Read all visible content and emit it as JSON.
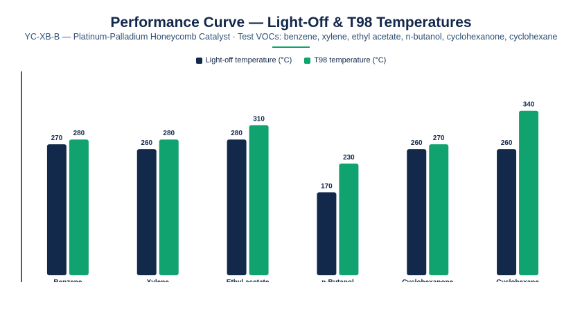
{
  "header": {
    "title": "Performance Curve — Light-Off & T98 Temperatures",
    "subtitle": "YC-XB-B — Platinum-Palladium Honeycomb Catalyst · Test VOCs: benzene, xylene, ethyl acetate, n-butanol, cyclohexanone, cyclohexane"
  },
  "colors": {
    "accent": "#10a36f",
    "navy": "#13294b"
  },
  "chart_data": {
    "type": "bar",
    "title": "Performance Curve — Light-Off & T98 Temperatures",
    "categories": [
      "Benzene",
      "Xylene",
      "Ethyl acetate",
      "n-Butanol",
      "Cyclohexanone",
      "Cyclohexane"
    ],
    "series": [
      {
        "name": "Light-off temperature (°C)",
        "color": "#13294b",
        "values": [
          270,
          260,
          280,
          170,
          260,
          260
        ]
      },
      {
        "name": "T98 temperature (°C)",
        "color": "#10a36f",
        "values": [
          280,
          280,
          310,
          230,
          270,
          340
        ]
      }
    ],
    "ylim": [
      0,
      380
    ],
    "grid": false,
    "legend_position": "top-center",
    "data_labels": true
  }
}
